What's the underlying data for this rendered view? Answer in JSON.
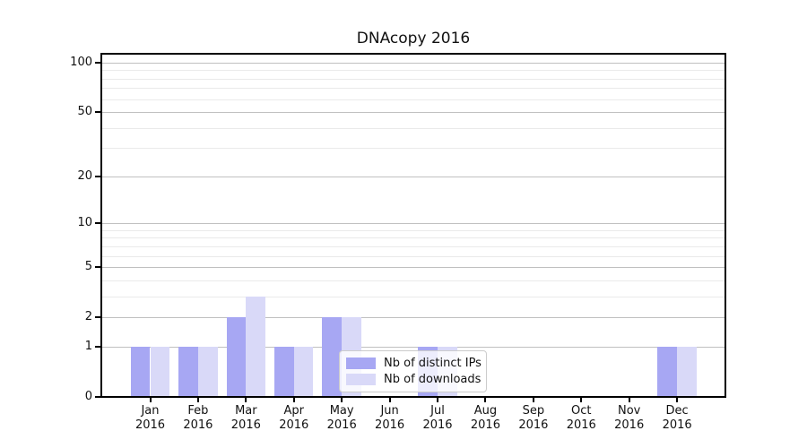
{
  "title": "DNAcopy 2016",
  "colors": {
    "distinct_ips": "#a7a7f3",
    "downloads": "#d9d9f8",
    "grid_major": "#c0c0c0",
    "grid_minor": "#eaeaea",
    "spine": "#000000",
    "legend_border": "#cccccc"
  },
  "legend": {
    "items": [
      {
        "label": "Nb of distinct IPs",
        "series": 0
      },
      {
        "label": "Nb of downloads",
        "series": 1
      }
    ]
  },
  "chart_data": {
    "type": "bar",
    "title": "DNAcopy 2016",
    "categories": [
      "Jan 2016",
      "Feb 2016",
      "Mar 2016",
      "Apr 2016",
      "May 2016",
      "Jun 2016",
      "Jul 2016",
      "Aug 2016",
      "Sep 2016",
      "Oct 2016",
      "Nov 2016",
      "Dec 2016"
    ],
    "x_tick_line1": [
      "Jan",
      "Feb",
      "Mar",
      "Apr",
      "May",
      "Jun",
      "Jul",
      "Aug",
      "Sep",
      "Oct",
      "Nov",
      "Dec"
    ],
    "x_tick_line2": [
      "2016",
      "2016",
      "2016",
      "2016",
      "2016",
      "2016",
      "2016",
      "2016",
      "2016",
      "2016",
      "2016",
      "2016"
    ],
    "series": [
      {
        "name": "Nb of distinct IPs",
        "color": "#a7a7f3",
        "values": [
          1,
          1,
          2,
          1,
          2,
          0,
          1,
          0,
          0,
          0,
          0,
          1
        ]
      },
      {
        "name": "Nb of downloads",
        "color": "#d9d9f8",
        "values": [
          1,
          1,
          3,
          1,
          2,
          0,
          1,
          0,
          0,
          0,
          0,
          1
        ]
      }
    ],
    "y_scale": "log1p",
    "y_ticks_major": [
      0,
      1,
      2,
      5,
      10,
      20,
      50,
      100
    ],
    "y_ticks_minor": [
      3,
      4,
      6,
      7,
      8,
      9,
      30,
      40,
      60,
      70,
      80,
      90
    ],
    "ylim": [
      0,
      113
    ],
    "xlabel": "",
    "ylabel": "",
    "grid": "horizontal",
    "legend_position": "inside lower center-right"
  }
}
